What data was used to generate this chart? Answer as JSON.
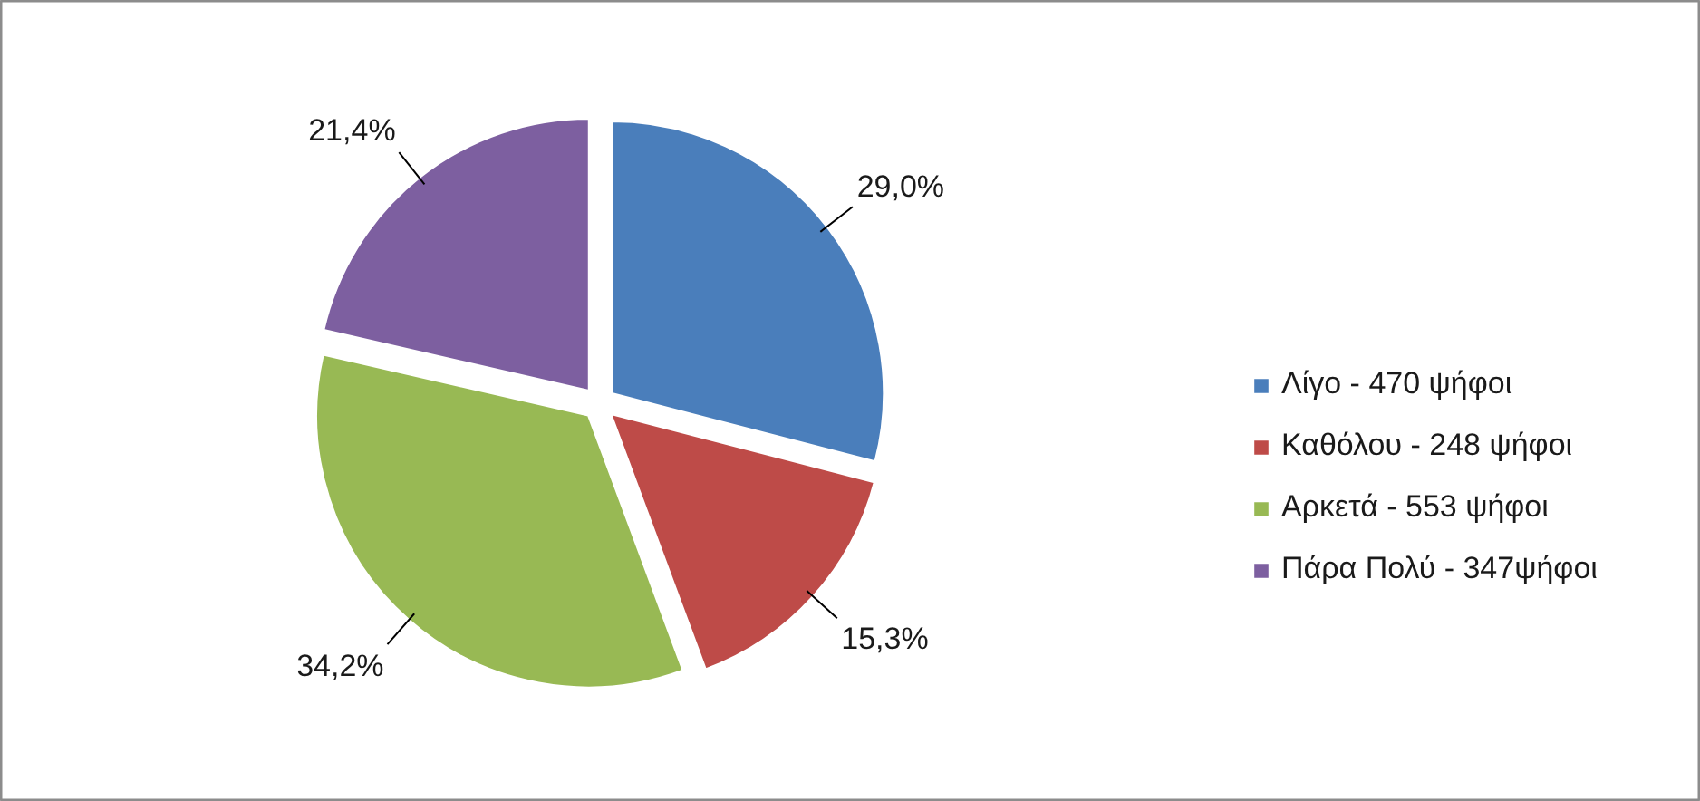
{
  "chart_data": {
    "type": "pie",
    "categories": [
      "Λίγο - 470 ψήφοι",
      "Καθόλου - 248 ψήφοι",
      "Αρκετά - 553 ψήφοι",
      "Πάρα Πολύ - 347ψήφοι"
    ],
    "values": [
      29.0,
      15.3,
      34.2,
      21.4
    ],
    "colors": [
      "#4a7ebb",
      "#be4b48",
      "#98b954",
      "#7d5fa0"
    ],
    "value_labels": [
      "29,0%",
      "15,3%",
      "34,2%",
      "21,4%"
    ],
    "legend": "right"
  }
}
